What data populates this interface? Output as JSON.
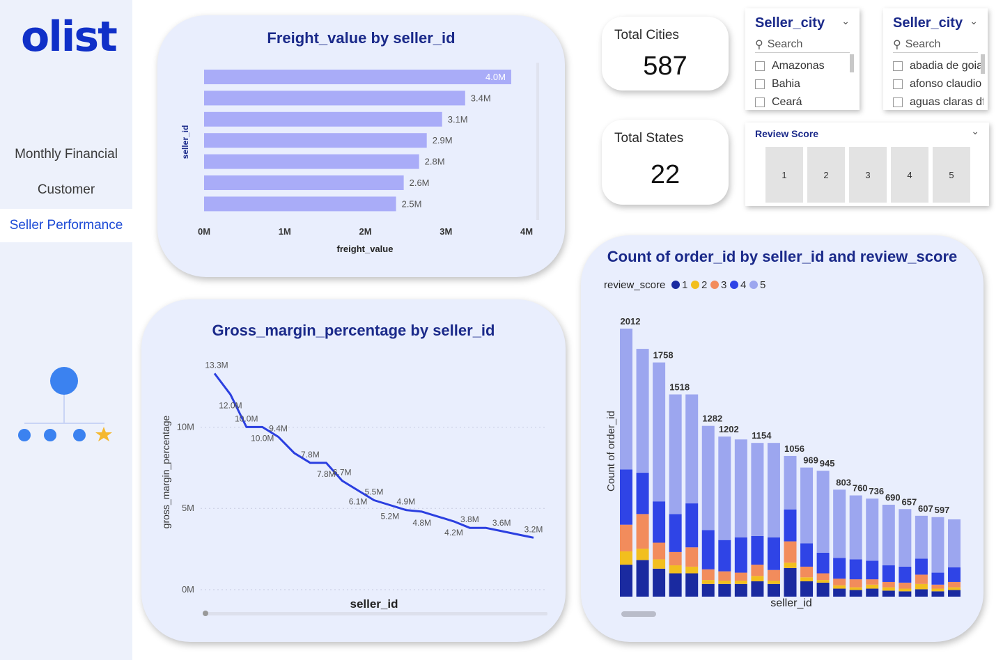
{
  "sidebar": {
    "logo": "olist",
    "nav": [
      "Monthly Financial",
      "Customer",
      "Seller Performance"
    ]
  },
  "kpis": {
    "cities": {
      "label": "Total Cities",
      "value": "587"
    },
    "states": {
      "label": "Total States",
      "value": "22"
    }
  },
  "slicers": {
    "city1": {
      "title": "Seller_city",
      "search": "Search",
      "items": [
        "Amazonas",
        "Bahia",
        "Ceará"
      ]
    },
    "city2": {
      "title": "Seller_city",
      "search": "Search",
      "items": [
        "abadia de goias",
        "afonso claudio",
        "aguas claras df"
      ]
    },
    "review": {
      "title": "Review Score",
      "items": [
        "1",
        "2",
        "3",
        "4",
        "5"
      ]
    }
  },
  "colors": {
    "bar": "#a9acf8",
    "line": "#2b3fe0",
    "card": "#e9eefd",
    "title": "#1b2a8a",
    "accent": "#1c4ad6",
    "score1": "#1a2aa0",
    "score2": "#f2bf1e",
    "score3": "#f28c5c",
    "score4": "#2f44e6",
    "score5": "#9ca6ef"
  },
  "chart_data": [
    {
      "type": "bar",
      "title": "Freight_value by seller_id",
      "xlabel": "freight_value",
      "ylabel": "seller_id",
      "values": [
        4.0,
        3.4,
        3.1,
        2.9,
        2.8,
        2.6,
        2.5
      ],
      "data_labels": [
        "4.0M",
        "3.4M",
        "3.1M",
        "2.9M",
        "2.8M",
        "2.6M",
        "2.5M"
      ],
      "xticks": [
        "0M",
        "1M",
        "2M",
        "3M",
        "4M"
      ],
      "xlim": [
        0,
        4.2
      ]
    },
    {
      "type": "line",
      "title": "Gross_margin_percentage by seller_id",
      "xlabel": "seller_id",
      "ylabel": "gross_margin_percentage",
      "values": [
        13.3,
        12.0,
        10.0,
        10.0,
        9.4,
        8.4,
        7.8,
        7.8,
        6.7,
        6.1,
        5.5,
        5.2,
        4.9,
        4.8,
        4.5,
        4.2,
        3.8,
        3.8,
        3.6,
        3.4,
        3.2
      ],
      "labels": [
        "13.3M",
        "12.0M",
        "10.0M",
        "10.0M",
        "9.4M",
        "",
        "7.8M",
        "7.8M",
        "6.7M",
        "6.1M",
        "5.5M",
        "5.2M",
        "4.9M",
        "4.8M",
        "",
        "4.2M",
        "3.8M",
        "",
        "3.6M",
        "",
        "3.2M"
      ],
      "yticks": [
        "0M",
        "5M",
        "10M"
      ],
      "ylim": [
        0,
        14.6
      ]
    },
    {
      "type": "bar",
      "stacked": true,
      "title": "Count of order_id by seller_id and review_score",
      "xlabel": "seller_id",
      "ylabel": "Count of order_id",
      "legend_title": "review_score",
      "legend": [
        "1",
        "2",
        "3",
        "4",
        "5"
      ],
      "totals": [
        2012,
        1860,
        1758,
        1518,
        1518,
        1282,
        1202,
        1180,
        1154,
        1154,
        1056,
        969,
        945,
        803,
        760,
        736,
        690,
        657,
        607,
        597,
        580
      ],
      "total_labels": [
        "2012",
        "",
        "1758",
        "1518",
        "",
        "1282",
        "1202",
        "",
        "1154",
        "",
        "1056",
        "969",
        "945",
        "803",
        "760",
        "736",
        "690",
        "657",
        "607",
        "597",
        ""
      ],
      "series": [
        {
          "name": "1",
          "values": [
            240,
            275,
            210,
            175,
            175,
            95,
            95,
            95,
            115,
            95,
            215,
            115,
            105,
            60,
            50,
            60,
            45,
            40,
            55,
            40,
            50
          ]
        },
        {
          "name": "2",
          "values": [
            100,
            85,
            70,
            60,
            50,
            30,
            25,
            25,
            40,
            25,
            40,
            30,
            20,
            25,
            20,
            30,
            25,
            20,
            40,
            20,
            20
          ]
        },
        {
          "name": "3",
          "values": [
            200,
            260,
            125,
            100,
            145,
            80,
            70,
            60,
            85,
            80,
            160,
            80,
            50,
            50,
            60,
            40,
            40,
            45,
            70,
            30,
            40
          ]
        },
        {
          "name": "4",
          "values": [
            415,
            310,
            310,
            285,
            330,
            295,
            235,
            265,
            215,
            245,
            240,
            175,
            155,
            155,
            150,
            140,
            125,
            120,
            120,
            90,
            110
          ]
        },
        {
          "name": "5",
          "values": [
            1057,
            930,
            1043,
            898,
            818,
            782,
            777,
            735,
            699,
            709,
            401,
            569,
            615,
            513,
            480,
            466,
            455,
            432,
            322,
            417,
            360
          ]
        }
      ],
      "ylim": [
        0,
        2012
      ]
    }
  ]
}
